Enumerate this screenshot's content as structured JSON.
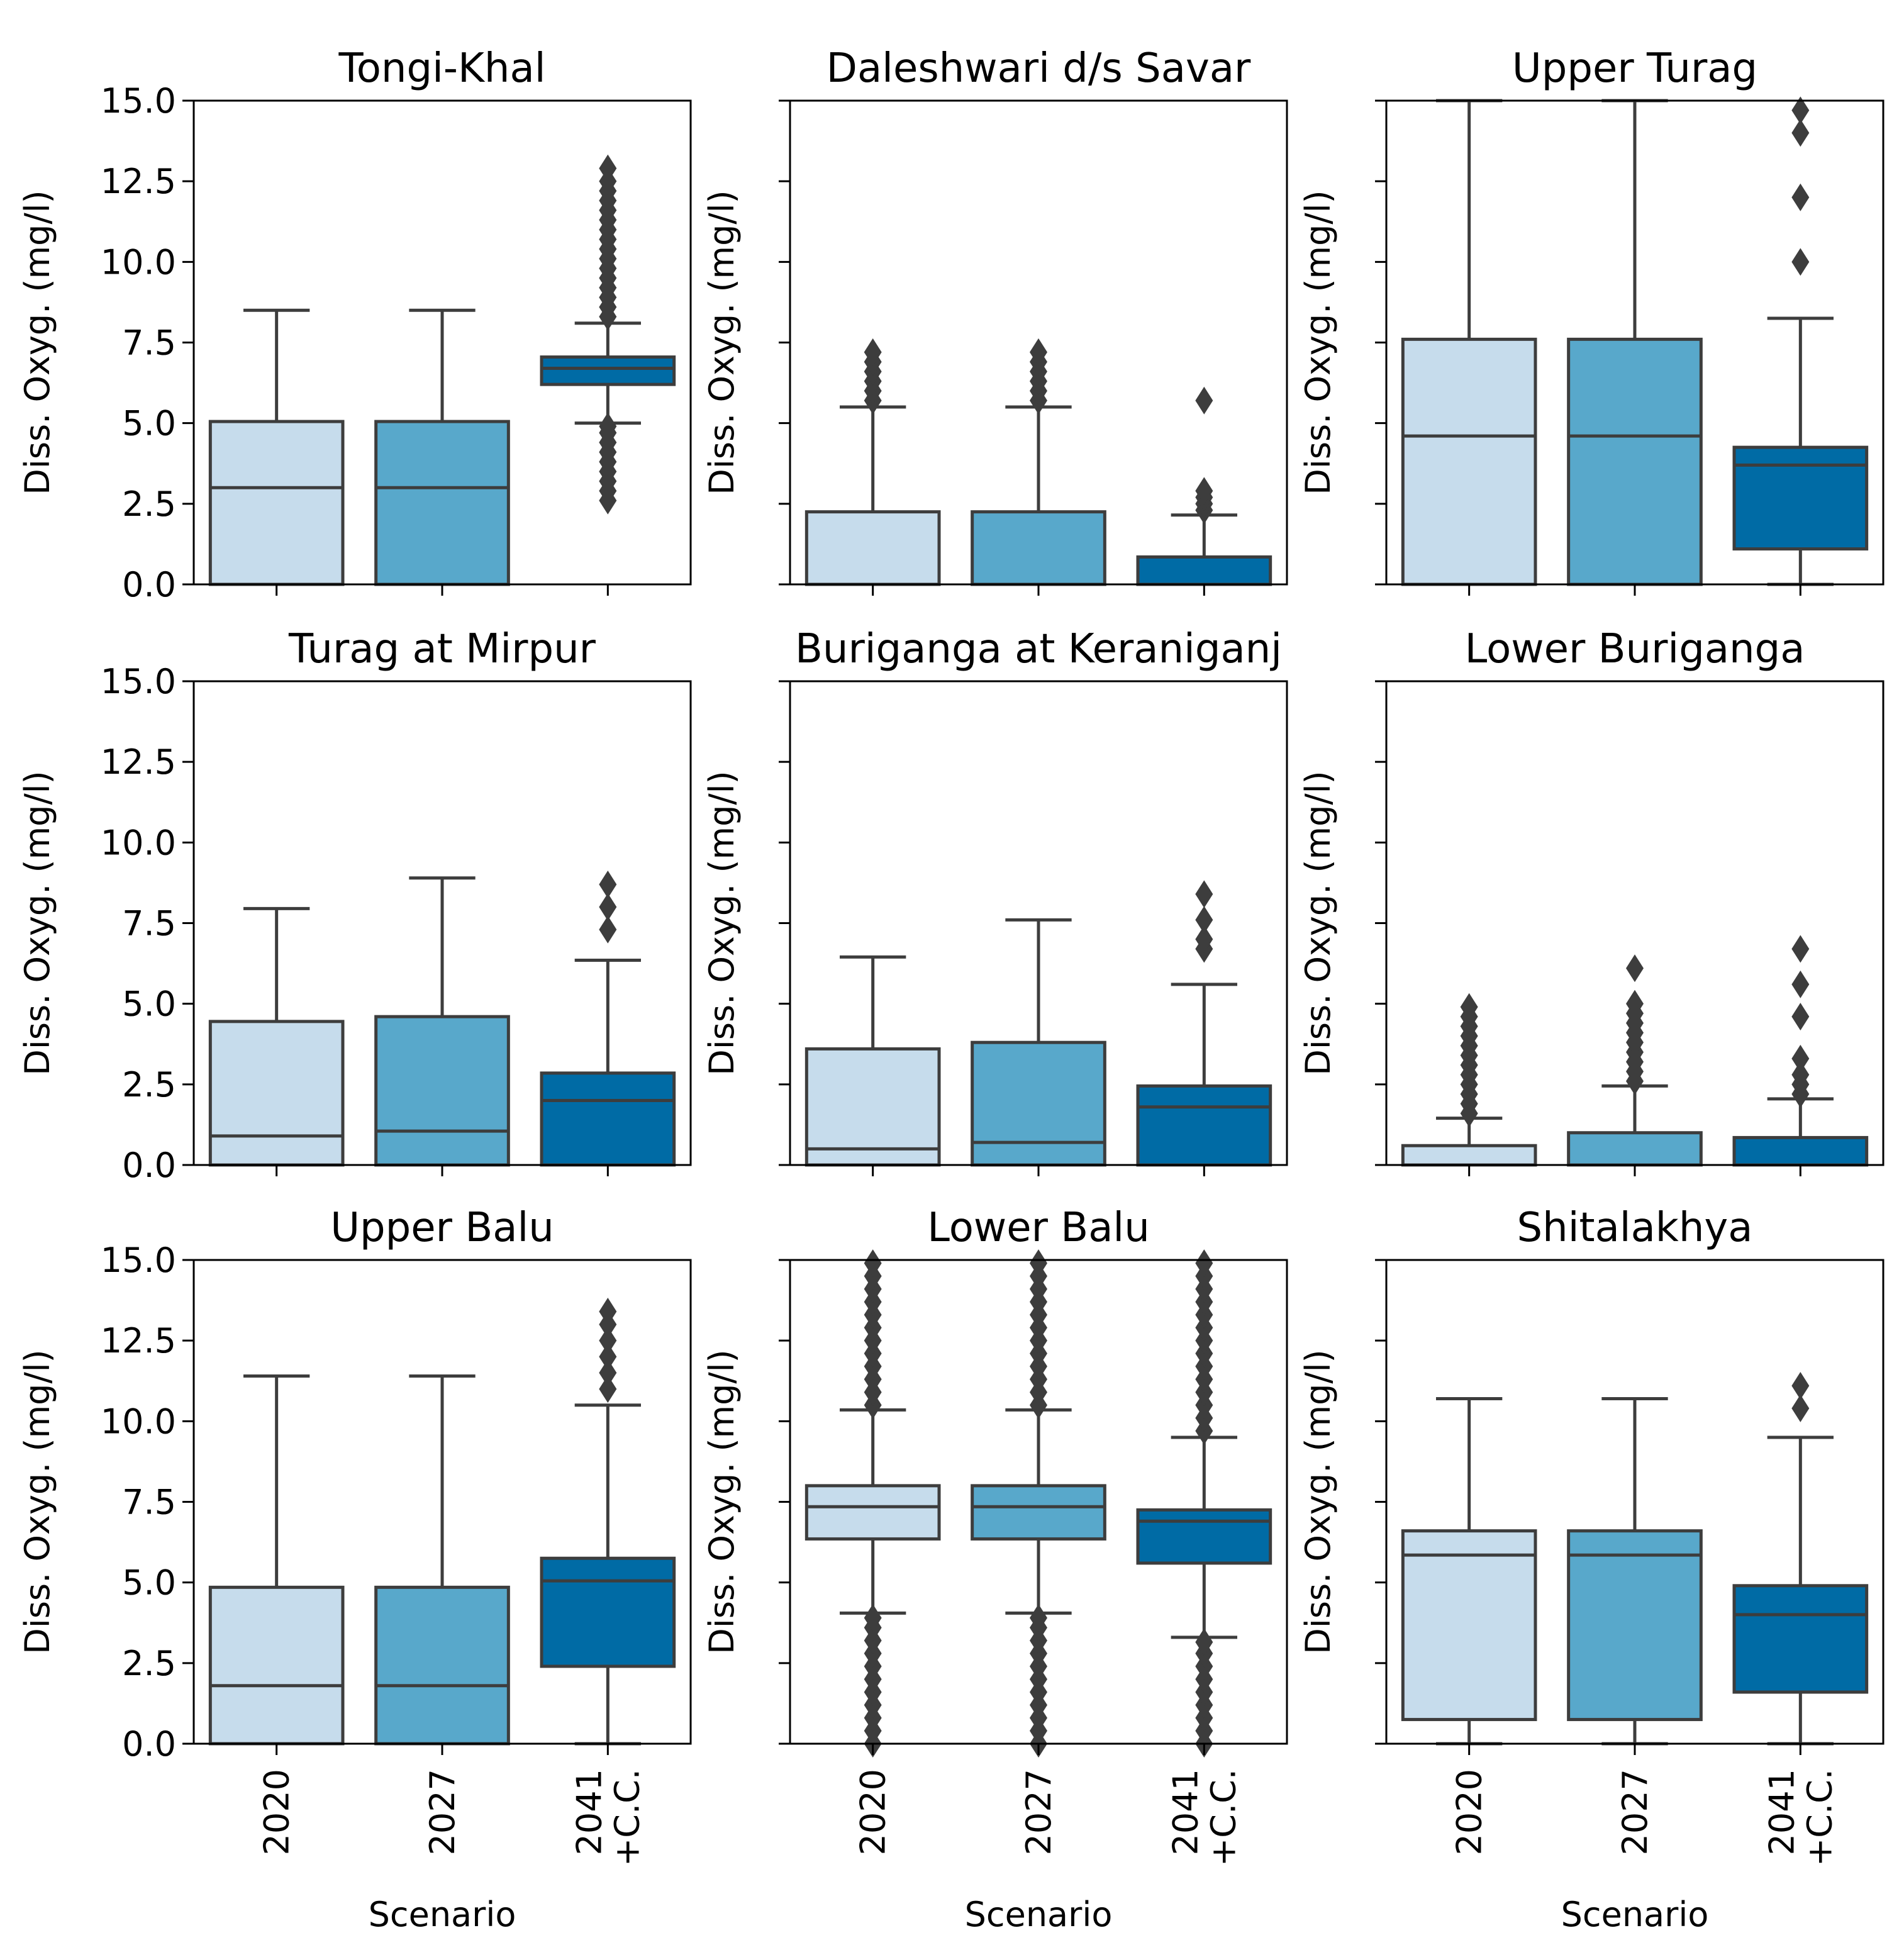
{
  "colors": {
    "series": [
      "#c6dcec",
      "#58a8cb",
      "#006ba5"
    ],
    "line": "#3d3d3d",
    "axis": "#000000"
  },
  "y_axis_label": "Diss. Oxyg. (mg/l)",
  "x_axis_label": "Scenario",
  "chart_data": [
    {
      "type": "box",
      "title": "Tongi-Khal",
      "categories": [
        "2020",
        "2027",
        "2041\n+C.C."
      ],
      "ylabel": "Diss. Oxyg. (mg/l)",
      "xlabel": "",
      "ylim": [
        0,
        15
      ],
      "yticks": [
        "0.0",
        "2.5",
        "5.0",
        "7.5",
        "10.0",
        "12.5",
        "15.0"
      ],
      "boxes": [
        {
          "whislo": 0,
          "q1": 0,
          "med": 3.0,
          "q3": 5.05,
          "whishi": 8.5,
          "fliers": []
        },
        {
          "whislo": 0,
          "q1": 0,
          "med": 3.0,
          "q3": 5.05,
          "whishi": 8.5,
          "fliers": []
        },
        {
          "whislo": 5.0,
          "q1": 6.2,
          "med": 6.7,
          "q3": 7.05,
          "whishi": 8.1,
          "fliers": [
            2.6,
            2.9,
            3.2,
            3.5,
            3.8,
            4.1,
            4.4,
            4.7,
            4.9,
            8.3,
            8.6,
            8.9,
            9.2,
            9.5,
            9.8,
            10.1,
            10.4,
            10.7,
            11.0,
            11.3,
            11.6,
            11.9,
            12.2,
            12.5,
            12.9
          ]
        }
      ]
    },
    {
      "type": "box",
      "title": "Daleshwari d/s Savar",
      "categories": [
        "2020",
        "2027",
        "2041\n+C.C."
      ],
      "ylabel": "Diss. Oxyg. (mg/l)",
      "xlabel": "",
      "ylim": [
        0,
        15
      ],
      "boxes": [
        {
          "whislo": 0,
          "q1": 0,
          "med": 0,
          "q3": 2.25,
          "whishi": 5.5,
          "fliers": [
            5.7,
            6.0,
            6.3,
            6.6,
            6.9,
            7.2
          ]
        },
        {
          "whislo": 0,
          "q1": 0,
          "med": 0,
          "q3": 2.25,
          "whishi": 5.5,
          "fliers": [
            5.7,
            6.0,
            6.3,
            6.6,
            6.9,
            7.2
          ]
        },
        {
          "whislo": 0,
          "q1": 0,
          "med": 0,
          "q3": 0.85,
          "whishi": 2.15,
          "fliers": [
            2.3,
            2.5,
            2.7,
            2.9,
            5.7
          ]
        }
      ]
    },
    {
      "type": "box",
      "title": "Upper Turag",
      "categories": [
        "2020",
        "2027",
        "2041\n+C.C."
      ],
      "ylabel": "Diss. Oxyg. (mg/l)",
      "xlabel": "",
      "ylim": [
        0,
        15
      ],
      "boxes": [
        {
          "whislo": 0,
          "q1": 0,
          "med": 4.6,
          "q3": 7.6,
          "whishi": 15.0,
          "fliers": []
        },
        {
          "whislo": 0,
          "q1": 0,
          "med": 4.6,
          "q3": 7.6,
          "whishi": 15.0,
          "fliers": []
        },
        {
          "whislo": 0,
          "q1": 1.1,
          "med": 3.7,
          "q3": 4.25,
          "whishi": 8.25,
          "fliers": [
            10.0,
            12.0,
            14.0,
            14.7
          ]
        }
      ]
    },
    {
      "type": "box",
      "title": "Turag at Mirpur",
      "categories": [
        "2020",
        "2027",
        "2041\n+C.C."
      ],
      "ylabel": "Diss. Oxyg. (mg/l)",
      "xlabel": "",
      "ylim": [
        0,
        15
      ],
      "yticks": [
        "0.0",
        "2.5",
        "5.0",
        "7.5",
        "10.0",
        "12.5",
        "15.0"
      ],
      "boxes": [
        {
          "whislo": 0,
          "q1": 0,
          "med": 0.9,
          "q3": 4.45,
          "whishi": 7.95,
          "fliers": []
        },
        {
          "whislo": 0,
          "q1": 0,
          "med": 1.05,
          "q3": 4.6,
          "whishi": 8.9,
          "fliers": []
        },
        {
          "whislo": 0,
          "q1": 0,
          "med": 2.0,
          "q3": 2.85,
          "whishi": 6.35,
          "fliers": [
            7.3,
            8.0,
            8.7
          ]
        }
      ]
    },
    {
      "type": "box",
      "title": "Buriganga at Keraniganj",
      "categories": [
        "2020",
        "2027",
        "2041\n+C.C."
      ],
      "ylabel": "Diss. Oxyg. (mg/l)",
      "xlabel": "",
      "ylim": [
        0,
        15
      ],
      "boxes": [
        {
          "whislo": 0,
          "q1": 0,
          "med": 0.5,
          "q3": 3.6,
          "whishi": 6.45,
          "fliers": []
        },
        {
          "whislo": 0,
          "q1": 0,
          "med": 0.7,
          "q3": 3.8,
          "whishi": 7.6,
          "fliers": []
        },
        {
          "whislo": 0,
          "q1": 0,
          "med": 1.8,
          "q3": 2.45,
          "whishi": 5.6,
          "fliers": [
            6.7,
            7.0,
            7.6,
            8.4
          ]
        }
      ]
    },
    {
      "type": "box",
      "title": "Lower Buriganga",
      "categories": [
        "2020",
        "2027",
        "2041\n+C.C."
      ],
      "ylabel": "Diss. Oxyg. (mg/l)",
      "xlabel": "",
      "ylim": [
        0,
        15
      ],
      "boxes": [
        {
          "whislo": 0,
          "q1": 0,
          "med": 0,
          "q3": 0.6,
          "whishi": 1.45,
          "fliers": [
            1.6,
            1.9,
            2.2,
            2.5,
            2.8,
            3.1,
            3.4,
            3.7,
            4.0,
            4.3,
            4.6,
            4.9
          ]
        },
        {
          "whislo": 0,
          "q1": 0,
          "med": 0,
          "q3": 1.0,
          "whishi": 2.45,
          "fliers": [
            2.6,
            2.9,
            3.2,
            3.5,
            3.8,
            4.1,
            4.4,
            4.7,
            5.0,
            6.1
          ]
        },
        {
          "whislo": 0,
          "q1": 0,
          "med": 0,
          "q3": 0.85,
          "whishi": 2.05,
          "fliers": [
            2.2,
            2.5,
            2.8,
            3.3,
            4.6,
            5.6,
            6.7
          ]
        }
      ]
    },
    {
      "type": "box",
      "title": "Upper Balu",
      "categories": [
        "2020",
        "2027",
        "2041\n+C.C."
      ],
      "ylabel": "Diss. Oxyg. (mg/l)",
      "xlabel": "Scenario",
      "ylim": [
        0,
        15
      ],
      "yticks": [
        "0.0",
        "2.5",
        "5.0",
        "7.5",
        "10.0",
        "12.5",
        "15.0"
      ],
      "boxes": [
        {
          "whislo": 0,
          "q1": 0,
          "med": 1.8,
          "q3": 4.85,
          "whishi": 11.4,
          "fliers": []
        },
        {
          "whislo": 0,
          "q1": 0,
          "med": 1.8,
          "q3": 4.85,
          "whishi": 11.4,
          "fliers": []
        },
        {
          "whislo": 0,
          "q1": 2.4,
          "med": 5.05,
          "q3": 5.75,
          "whishi": 10.5,
          "fliers": [
            11.0,
            11.5,
            12.0,
            12.5,
            13.0,
            13.4
          ]
        }
      ]
    },
    {
      "type": "box",
      "title": "Lower Balu",
      "categories": [
        "2020",
        "2027",
        "2041\n+C.C."
      ],
      "ylabel": "Diss. Oxyg. (mg/l)",
      "xlabel": "Scenario",
      "ylim": [
        0,
        15
      ],
      "boxes": [
        {
          "whislo": 4.05,
          "q1": 6.35,
          "med": 7.35,
          "q3": 8.0,
          "whishi": 10.35,
          "fliers": [
            0.0,
            0.4,
            0.8,
            1.2,
            1.6,
            2.0,
            2.4,
            2.8,
            3.2,
            3.6,
            3.9,
            10.5,
            10.9,
            11.3,
            11.7,
            12.1,
            12.5,
            12.9,
            13.3,
            13.7,
            14.1,
            14.5,
            14.9
          ]
        },
        {
          "whislo": 4.05,
          "q1": 6.35,
          "med": 7.35,
          "q3": 8.0,
          "whishi": 10.35,
          "fliers": [
            0.0,
            0.4,
            0.8,
            1.2,
            1.6,
            2.0,
            2.4,
            2.8,
            3.2,
            3.6,
            3.9,
            10.5,
            10.9,
            11.3,
            11.7,
            12.1,
            12.5,
            12.9,
            13.3,
            13.7,
            14.1,
            14.5,
            14.9
          ]
        },
        {
          "whislo": 3.3,
          "q1": 5.6,
          "med": 6.9,
          "q3": 7.25,
          "whishi": 9.5,
          "fliers": [
            0.0,
            0.4,
            0.8,
            1.2,
            1.6,
            2.0,
            2.4,
            2.8,
            3.15,
            9.7,
            10.1,
            10.5,
            10.9,
            11.3,
            11.7,
            12.1,
            12.5,
            12.9,
            13.3,
            13.7,
            14.1,
            14.5,
            14.9
          ]
        }
      ]
    },
    {
      "type": "box",
      "title": "Shitalakhya",
      "categories": [
        "2020",
        "2027",
        "2041\n+C.C."
      ],
      "ylabel": "Diss. Oxyg. (mg/l)",
      "xlabel": "Scenario",
      "ylim": [
        0,
        15
      ],
      "boxes": [
        {
          "whislo": 0,
          "q1": 0.75,
          "med": 5.85,
          "q3": 6.6,
          "whishi": 10.7,
          "fliers": []
        },
        {
          "whislo": 0,
          "q1": 0.75,
          "med": 5.85,
          "q3": 6.6,
          "whishi": 10.7,
          "fliers": []
        },
        {
          "whislo": 0,
          "q1": 1.6,
          "med": 4.0,
          "q3": 4.9,
          "whishi": 9.5,
          "fliers": [
            10.4,
            11.1
          ]
        }
      ]
    }
  ]
}
